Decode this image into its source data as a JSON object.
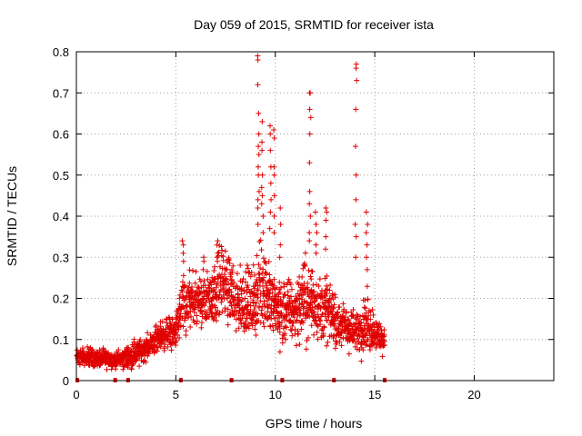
{
  "chart_data": {
    "type": "scatter",
    "title": "Day 059 of 2015, SRMTID for receiver ista",
    "xlabel": "GPS time / hours",
    "ylabel": "SRMTID / TECUs",
    "xlim": [
      0,
      24
    ],
    "ylim": [
      0,
      0.8
    ],
    "xticks": [
      0,
      5,
      10,
      15,
      20
    ],
    "yticks": [
      0,
      0.1,
      0.2,
      0.3,
      0.4,
      0.5,
      0.6,
      0.7,
      0.8
    ],
    "xtick_labels": [
      "0",
      "5",
      "10",
      "15",
      "20"
    ],
    "ytick_labels": [
      "0",
      "0.1",
      "0.2",
      "0.3",
      "0.4",
      "0.5",
      "0.6",
      "0.7",
      "0.8"
    ],
    "grid": true,
    "marker": "plus",
    "color": "#e00000",
    "zero_markers_x": [
      0.05,
      1.95,
      2.6,
      5.25,
      7.8,
      10.35,
      12.95,
      15.5
    ],
    "series": [
      {
        "name": "SRMTID",
        "trend": {
          "x": [
            0.0,
            1.0,
            2.0,
            2.5,
            3.0,
            3.5,
            4.0,
            4.5,
            5.0,
            5.3,
            6.0,
            7.0,
            7.3,
            8.0,
            9.0,
            9.3,
            10.0,
            11.0,
            11.5,
            12.0,
            13.0,
            13.5,
            14.0,
            14.5,
            15.0,
            15.5
          ],
          "y": [
            0.06,
            0.055,
            0.05,
            0.055,
            0.065,
            0.08,
            0.1,
            0.115,
            0.12,
            0.18,
            0.19,
            0.21,
            0.25,
            0.19,
            0.19,
            0.25,
            0.17,
            0.17,
            0.2,
            0.19,
            0.15,
            0.13,
            0.12,
            0.14,
            0.12,
            0.09
          ],
          "spread": [
            0.02,
            0.02,
            0.02,
            0.025,
            0.03,
            0.03,
            0.035,
            0.04,
            0.04,
            0.07,
            0.07,
            0.08,
            0.09,
            0.08,
            0.08,
            0.12,
            0.07,
            0.08,
            0.1,
            0.08,
            0.06,
            0.05,
            0.05,
            0.07,
            0.05,
            0.03
          ]
        },
        "peaks": [
          {
            "x": 9.15,
            "values": [
              0.79,
              0.78,
              0.72,
              0.65,
              0.6,
              0.57,
              0.55,
              0.52,
              0.5,
              0.46,
              0.44,
              0.42,
              0.38
            ]
          },
          {
            "x": 9.35,
            "values": [
              0.63,
              0.58,
              0.56,
              0.5,
              0.47,
              0.45,
              0.43,
              0.4,
              0.36
            ]
          },
          {
            "x": 9.75,
            "values": [
              0.62,
              0.6,
              0.56,
              0.52,
              0.48,
              0.44,
              0.41,
              0.37
            ]
          },
          {
            "x": 9.95,
            "values": [
              0.61,
              0.59,
              0.52,
              0.5,
              0.45,
              0.4,
              0.36
            ]
          },
          {
            "x": 10.25,
            "values": [
              0.42,
              0.38,
              0.33,
              0.3,
              0.07
            ]
          },
          {
            "x": 11.75,
            "values": [
              0.7,
              0.7,
              0.66,
              0.64,
              0.6,
              0.53,
              0.46,
              0.43,
              0.4,
              0.36,
              0.34
            ]
          },
          {
            "x": 12.05,
            "values": [
              0.41,
              0.38,
              0.36,
              0.33,
              0.31
            ]
          },
          {
            "x": 12.55,
            "values": [
              0.42,
              0.41,
              0.39,
              0.35,
              0.32
            ]
          },
          {
            "x": 14.05,
            "values": [
              0.77,
              0.76,
              0.73,
              0.66,
              0.57,
              0.5,
              0.44,
              0.38,
              0.35,
              0.3
            ]
          },
          {
            "x": 14.6,
            "values": [
              0.41,
              0.38,
              0.36,
              0.33,
              0.3,
              0.27
            ]
          },
          {
            "x": 7.1,
            "values": [
              0.34,
              0.33,
              0.31,
              0.3,
              0.29
            ]
          },
          {
            "x": 6.4,
            "values": [
              0.3,
              0.29,
              0.27
            ]
          },
          {
            "x": 5.35,
            "values": [
              0.34,
              0.33,
              0.31,
              0.29
            ]
          }
        ]
      }
    ]
  }
}
